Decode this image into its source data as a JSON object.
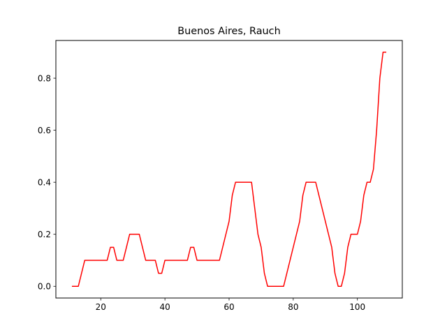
{
  "chart_data": {
    "type": "line",
    "title": "Buenos Aires, Rauch",
    "xlabel": "",
    "ylabel": "",
    "xlim": [
      6,
      114
    ],
    "ylim": [
      -0.045,
      0.945
    ],
    "xticks": [
      20,
      40,
      60,
      80,
      100
    ],
    "yticks": [
      0.0,
      0.2,
      0.4,
      0.6,
      0.8
    ],
    "xtick_labels": [
      "20",
      "40",
      "60",
      "80",
      "100"
    ],
    "ytick_labels": [
      "0.0",
      "0.2",
      "0.4",
      "0.6",
      "0.8"
    ],
    "grid": false,
    "legend": "none",
    "series": [
      {
        "color": "#ff0000",
        "x": [
          11,
          12,
          13,
          14,
          15,
          16,
          17,
          18,
          19,
          20,
          21,
          22,
          23,
          24,
          25,
          26,
          27,
          28,
          29,
          30,
          31,
          32,
          33,
          34,
          35,
          36,
          37,
          38,
          39,
          40,
          41,
          42,
          43,
          44,
          45,
          46,
          47,
          48,
          49,
          50,
          51,
          52,
          53,
          54,
          55,
          56,
          57,
          58,
          59,
          60,
          61,
          62,
          63,
          64,
          65,
          66,
          67,
          68,
          69,
          70,
          71,
          72,
          73,
          74,
          75,
          76,
          77,
          78,
          79,
          80,
          81,
          82,
          83,
          84,
          85,
          86,
          87,
          88,
          89,
          90,
          91,
          92,
          93,
          94,
          95,
          96,
          97,
          98,
          99,
          100,
          101,
          102,
          103,
          104,
          105,
          106,
          107,
          108,
          109
        ],
        "y": [
          0.0,
          0.0,
          0.0,
          0.05,
          0.1,
          0.1,
          0.1,
          0.1,
          0.1,
          0.1,
          0.1,
          0.1,
          0.15,
          0.15,
          0.1,
          0.1,
          0.1,
          0.15,
          0.2,
          0.2,
          0.2,
          0.2,
          0.15,
          0.1,
          0.1,
          0.1,
          0.1,
          0.05,
          0.05,
          0.1,
          0.1,
          0.1,
          0.1,
          0.1,
          0.1,
          0.1,
          0.1,
          0.15,
          0.15,
          0.1,
          0.1,
          0.1,
          0.1,
          0.1,
          0.1,
          0.1,
          0.1,
          0.15,
          0.2,
          0.25,
          0.35,
          0.4,
          0.4,
          0.4,
          0.4,
          0.4,
          0.4,
          0.3,
          0.2,
          0.15,
          0.05,
          0.0,
          0.0,
          0.0,
          0.0,
          0.0,
          0.0,
          0.05,
          0.1,
          0.15,
          0.2,
          0.25,
          0.35,
          0.4,
          0.4,
          0.4,
          0.4,
          0.35,
          0.3,
          0.25,
          0.2,
          0.15,
          0.05,
          0.0,
          0.0,
          0.05,
          0.15,
          0.2,
          0.2,
          0.2,
          0.25,
          0.35,
          0.4,
          0.4,
          0.45,
          0.6,
          0.8,
          0.9,
          0.9
        ]
      }
    ]
  }
}
